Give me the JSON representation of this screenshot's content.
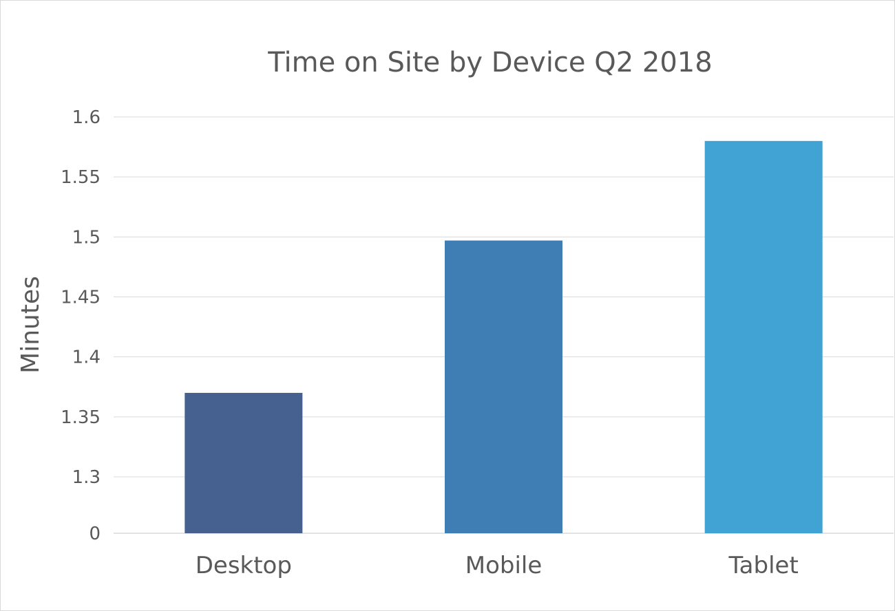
{
  "chart_data": {
    "type": "bar",
    "title": "Time on Site by Device Q2 2018",
    "xlabel": "",
    "ylabel": "Minutes",
    "categories": [
      "Desktop",
      "Mobile",
      "Tablet"
    ],
    "values": [
      1.37,
      1.497,
      1.58
    ],
    "y_ticks": [
      0,
      1.3,
      1.35,
      1.4,
      1.45,
      1.5,
      1.55,
      1.6
    ],
    "y_tick_labels": [
      "0",
      "1.3",
      "1.35",
      "1.4",
      "1.45",
      "1.5",
      "1.55",
      "1.6"
    ],
    "y_axis_break": true,
    "ylim": [
      1.25,
      1.6
    ],
    "grid": true,
    "legend": "none",
    "colors": [
      "#46608f",
      "#3f7db5",
      "#41a2d4"
    ],
    "gridline_color": "#d9d9d9",
    "text_color": "#595959"
  }
}
